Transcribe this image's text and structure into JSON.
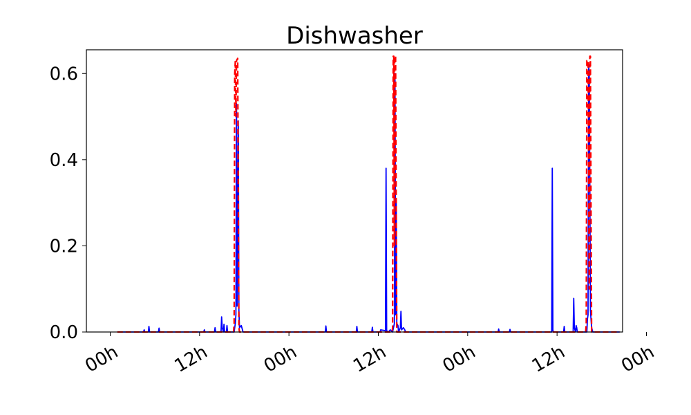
{
  "chart_data": {
    "type": "line",
    "title": "Dishwasher",
    "xlabel": "",
    "ylabel": "",
    "ylim": [
      0.0,
      0.655
    ],
    "xlim": [
      -4,
      86
    ],
    "y_ticks": [
      0.0,
      0.2,
      0.4,
      0.6
    ],
    "y_tick_labels": [
      "0.0",
      "0.2",
      "0.4",
      "0.6"
    ],
    "x_ticks": [
      0,
      15,
      30,
      45,
      60,
      75,
      90
    ],
    "x_tick_labels": [
      "00h",
      "12h",
      "00h",
      "12h",
      "00h",
      "12h",
      "00h"
    ],
    "x_unit_note": "hours",
    "grid": false,
    "legend": "none",
    "series": [
      {
        "style": "solid",
        "color": "#0000ff",
        "points": [
          [
            1.2,
            0
          ],
          [
            5.6,
            0
          ],
          [
            5.7,
            0.005
          ],
          [
            5.8,
            0
          ],
          [
            6.4,
            0
          ],
          [
            6.5,
            0.013
          ],
          [
            6.6,
            0
          ],
          [
            8.1,
            0
          ],
          [
            8.2,
            0.009
          ],
          [
            8.3,
            0
          ],
          [
            15.7,
            0
          ],
          [
            15.8,
            0.005
          ],
          [
            15.9,
            0
          ],
          [
            17.5,
            0
          ],
          [
            17.6,
            0.01
          ],
          [
            17.7,
            0
          ],
          [
            18.6,
            0
          ],
          [
            18.7,
            0.035
          ],
          [
            18.8,
            0.01
          ],
          [
            19.0,
            0
          ],
          [
            19.1,
            0.018
          ],
          [
            19.2,
            0
          ],
          [
            19.5,
            0
          ],
          [
            19.6,
            0.015
          ],
          [
            19.7,
            0
          ],
          [
            20.8,
            0
          ],
          [
            21.0,
            0.02
          ],
          [
            21.1,
            0.04
          ],
          [
            21.2,
            0.53
          ],
          [
            21.3,
            0.06
          ],
          [
            21.4,
            0.3
          ],
          [
            21.5,
            0.49
          ],
          [
            21.6,
            0.05
          ],
          [
            21.7,
            0.01
          ],
          [
            22.0,
            0.015
          ],
          [
            22.3,
            0
          ],
          [
            36.1,
            0
          ],
          [
            36.2,
            0.014
          ],
          [
            36.3,
            0
          ],
          [
            41.3,
            0
          ],
          [
            41.4,
            0.013
          ],
          [
            41.5,
            0
          ],
          [
            43.9,
            0
          ],
          [
            44.0,
            0.011
          ],
          [
            44.1,
            0
          ],
          [
            45.3,
            0
          ],
          [
            45.4,
            0.005
          ],
          [
            46.2,
            0.003
          ],
          [
            46.3,
            0.38
          ],
          [
            46.4,
            0.003
          ],
          [
            46.7,
            0
          ],
          [
            47.0,
            0.005
          ],
          [
            47.4,
            0
          ],
          [
            47.7,
            0.02
          ],
          [
            47.8,
            0.6
          ],
          [
            47.9,
            0.04
          ],
          [
            48.0,
            0.31
          ],
          [
            48.1,
            0.02
          ],
          [
            48.3,
            0.015
          ],
          [
            48.4,
            0
          ],
          [
            48.7,
            0.01
          ],
          [
            48.8,
            0.048
          ],
          [
            48.9,
            0.005
          ],
          [
            49.2,
            0.01
          ],
          [
            49.4,
            0.006
          ],
          [
            49.6,
            0
          ],
          [
            65.1,
            0
          ],
          [
            65.2,
            0.007
          ],
          [
            65.3,
            0
          ],
          [
            67.0,
            0
          ],
          [
            67.1,
            0.006
          ],
          [
            67.2,
            0
          ],
          [
            74.1,
            0
          ],
          [
            74.2,
            0.38
          ],
          [
            74.3,
            0.003
          ],
          [
            74.5,
            0
          ],
          [
            76.1,
            0
          ],
          [
            76.2,
            0.013
          ],
          [
            76.3,
            0
          ],
          [
            77.7,
            0
          ],
          [
            77.8,
            0.078
          ],
          [
            77.9,
            0.01
          ],
          [
            78.1,
            0
          ],
          [
            78.2,
            0.015
          ],
          [
            78.3,
            0.01
          ],
          [
            78.4,
            0
          ],
          [
            80.0,
            0
          ],
          [
            80.1,
            0.03
          ],
          [
            80.2,
            0.04
          ],
          [
            80.3,
            0.62
          ],
          [
            80.4,
            0.6
          ],
          [
            80.5,
            0.35
          ],
          [
            80.6,
            0.05
          ],
          [
            80.8,
            0.01
          ],
          [
            81.0,
            0
          ],
          [
            85.5,
            0
          ]
        ]
      },
      {
        "style": "dashed",
        "color": "#ff0000",
        "points": [
          [
            1.2,
            0
          ],
          [
            20.7,
            0
          ],
          [
            20.8,
            0.02
          ],
          [
            20.9,
            0.6
          ],
          [
            21.0,
            0.63
          ],
          [
            21.1,
            0.5
          ],
          [
            21.2,
            0.63
          ],
          [
            21.4,
            0.635
          ],
          [
            21.5,
            0.3
          ],
          [
            21.6,
            0.01
          ],
          [
            21.7,
            0
          ],
          [
            47.3,
            0
          ],
          [
            47.4,
            0.01
          ],
          [
            47.5,
            0.64
          ],
          [
            47.6,
            0.64
          ],
          [
            47.7,
            0.2
          ],
          [
            47.75,
            0.64
          ],
          [
            47.9,
            0.64
          ],
          [
            48.0,
            0.3
          ],
          [
            48.1,
            0
          ],
          [
            79.8,
            0
          ],
          [
            79.9,
            0.02
          ],
          [
            80.0,
            0.63
          ],
          [
            80.2,
            0.63
          ],
          [
            80.4,
            0.1
          ],
          [
            80.5,
            0.64
          ],
          [
            80.6,
            0.64
          ],
          [
            80.7,
            0.3
          ],
          [
            80.8,
            0
          ],
          [
            85.5,
            0
          ]
        ]
      }
    ]
  }
}
